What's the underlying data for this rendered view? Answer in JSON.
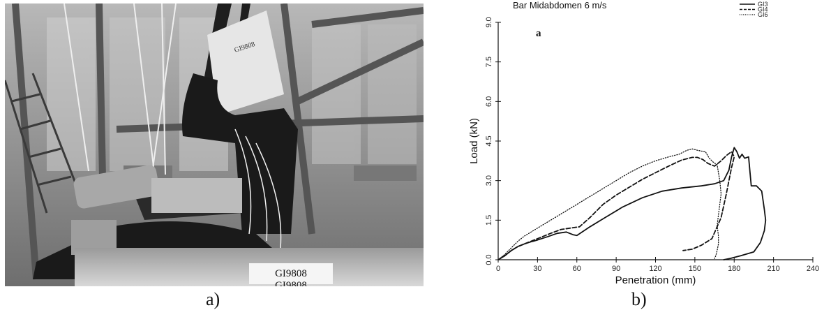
{
  "captions": {
    "a": "a)",
    "b": "b)"
  },
  "photo": {
    "label_tag": "GI9808",
    "label_tag_lower": "GI9808",
    "head_tag": "GI9808"
  },
  "chart_data": {
    "type": "line",
    "title": "Bar Midabdomen 6 m/s",
    "annotation": "a",
    "xlabel": "Penetration (mm)",
    "ylabel": "Load (kN)",
    "xlim": [
      0,
      240
    ],
    "ylim": [
      0,
      9.0
    ],
    "xticks": [
      0,
      30,
      60,
      90,
      120,
      150,
      180,
      210,
      240
    ],
    "yticks": [
      0.0,
      1.5,
      3.0,
      4.5,
      6.0,
      7.5,
      9.0
    ],
    "xtick_labels": [
      "0",
      "30",
      "60",
      "90",
      "120",
      "150",
      "180",
      "210",
      "240"
    ],
    "ytick_labels": [
      "0.0",
      "1.5",
      "3.0",
      "4.5",
      "6.0",
      "7.5",
      "9.0"
    ],
    "grid": false,
    "legend_position": "top-right",
    "series": [
      {
        "name": "GI3",
        "style": "solid",
        "x": [
          0,
          5,
          10,
          15,
          20,
          25,
          30,
          38,
          45,
          52,
          57,
          60,
          64,
          70,
          80,
          95,
          110,
          125,
          140,
          155,
          165,
          172,
          176,
          178,
          180,
          182,
          184,
          186,
          188,
          191,
          193,
          197,
          201,
          203,
          204,
          203,
          200,
          195,
          185,
          177,
          172
        ],
        "y": [
          0,
          0.15,
          0.35,
          0.5,
          0.6,
          0.68,
          0.75,
          0.88,
          1.0,
          1.05,
          0.95,
          0.92,
          1.05,
          1.25,
          1.55,
          2.0,
          2.35,
          2.6,
          2.72,
          2.8,
          2.88,
          3.0,
          3.4,
          3.9,
          4.25,
          4.1,
          3.85,
          4.0,
          3.85,
          3.9,
          2.8,
          2.8,
          2.6,
          1.9,
          1.5,
          1.1,
          0.65,
          0.3,
          0.15,
          0.05,
          0.0
        ]
      },
      {
        "name": "GI4",
        "style": "dashed",
        "x": [
          0,
          5,
          10,
          15,
          20,
          30,
          40,
          48,
          55,
          62,
          70,
          80,
          90,
          100,
          110,
          120,
          130,
          140,
          148,
          152,
          156,
          160,
          165,
          170,
          174,
          178,
          180,
          178,
          176,
          174,
          170,
          163,
          155,
          148,
          141
        ],
        "y": [
          0,
          0.15,
          0.35,
          0.5,
          0.6,
          0.8,
          1.0,
          1.15,
          1.2,
          1.25,
          1.6,
          2.1,
          2.45,
          2.75,
          3.05,
          3.3,
          3.55,
          3.78,
          3.88,
          3.88,
          3.8,
          3.65,
          3.55,
          3.75,
          3.95,
          4.1,
          3.9,
          3.5,
          3.0,
          2.5,
          1.6,
          0.8,
          0.55,
          0.4,
          0.35
        ]
      },
      {
        "name": "GI6",
        "style": "dotted",
        "x": [
          0,
          5,
          10,
          15,
          20,
          30,
          40,
          50,
          60,
          70,
          80,
          90,
          100,
          110,
          120,
          130,
          138,
          144,
          148,
          152,
          155,
          158,
          161,
          164,
          167,
          169,
          170,
          169,
          168,
          167,
          168,
          168,
          167,
          166,
          165
        ],
        "y": [
          0,
          0.2,
          0.45,
          0.7,
          0.9,
          1.2,
          1.5,
          1.8,
          2.1,
          2.4,
          2.7,
          3.0,
          3.3,
          3.55,
          3.75,
          3.9,
          4.0,
          4.15,
          4.2,
          4.15,
          4.12,
          4.1,
          3.85,
          3.7,
          3.6,
          3.0,
          2.5,
          2.1,
          1.7,
          1.3,
          0.9,
          0.6,
          0.35,
          0.15,
          0.05
        ]
      }
    ]
  }
}
